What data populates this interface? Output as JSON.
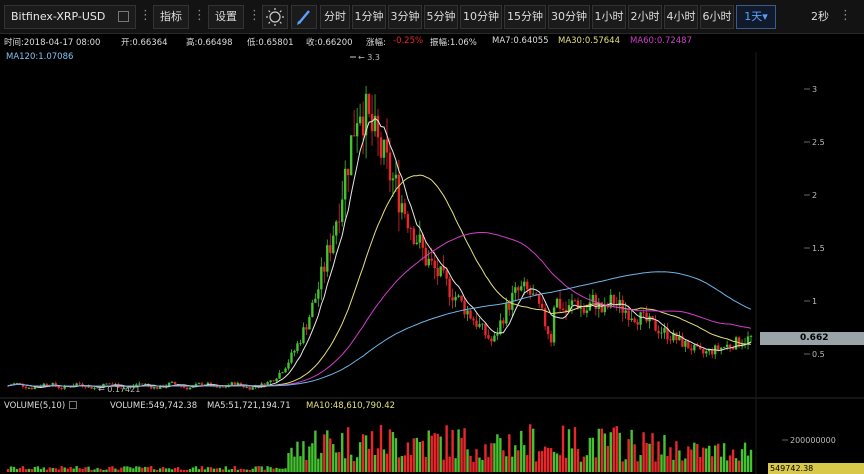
{
  "toolbar": {
    "pair": "Bitfinex-XRP-USD",
    "indicators": "指标",
    "settings": "设置",
    "intervals": [
      "分时",
      "1分钟",
      "3分钟",
      "5分钟",
      "10分钟",
      "15分钟",
      "30分钟",
      "1小时",
      "2小时",
      "4小时",
      "6小时",
      "1天▾"
    ],
    "active_interval": "1天▾",
    "refresh": "2秒"
  },
  "info": {
    "time": "时间:2018-04-17 08:00",
    "open": "开:0.66364",
    "high": "高:0.66498",
    "low": "低:0.65801",
    "close": "收:0.66200",
    "change_label": "涨幅:",
    "change_value": "-0.25%",
    "amplitude": "振幅:1.06%",
    "ma7": "MA7:0.64055",
    "ma30": "MA30:0.57644",
    "ma60": "MA60:0.72487",
    "ma120": "MA120:1.07086"
  },
  "price_axis": [
    "3",
    "2.5",
    "2",
    "1.5",
    "1",
    "0.5"
  ],
  "annotations": {
    "high_label": "3.3",
    "low_label": "0.17421",
    "last_price": "0.662"
  },
  "volume": {
    "title": "VOLUME(5,10)",
    "value": "VOLUME:549,742.38",
    "ma5": "MA5:51,721,194.71",
    "ma10": "MA10:48,610,790.42",
    "axis_label": "200000000",
    "last_tag": "549742.38"
  },
  "colors": {
    "up": "#44c22f",
    "down": "#e8262b",
    "ma7": "#e8e8e8",
    "ma30": "#e6e07a",
    "ma60": "#d13ec9",
    "ma120": "#6fb5e8",
    "accent": "#5aa0ff"
  }
}
